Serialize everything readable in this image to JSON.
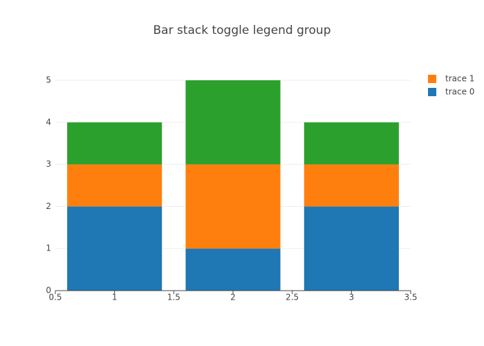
{
  "chart_data": {
    "type": "bar",
    "title": "Bar stack toggle legend group",
    "x": [
      1,
      2,
      3
    ],
    "series": [
      {
        "name": "trace 0",
        "color": "#1f77b4",
        "values": [
          2,
          1,
          2
        ]
      },
      {
        "name": "trace 1",
        "color": "#ff7f0e",
        "values": [
          1,
          2,
          1
        ]
      },
      {
        "color": "#2ca02c",
        "values": [
          1,
          2,
          1
        ]
      }
    ],
    "xlim": [
      0.5,
      3.5
    ],
    "xticks": [
      0.5,
      1,
      1.5,
      2,
      2.5,
      3,
      3.5
    ],
    "ylim": [
      0,
      5
    ],
    "yticks": [
      0,
      1,
      2,
      3,
      4,
      5
    ],
    "grid": true
  }
}
